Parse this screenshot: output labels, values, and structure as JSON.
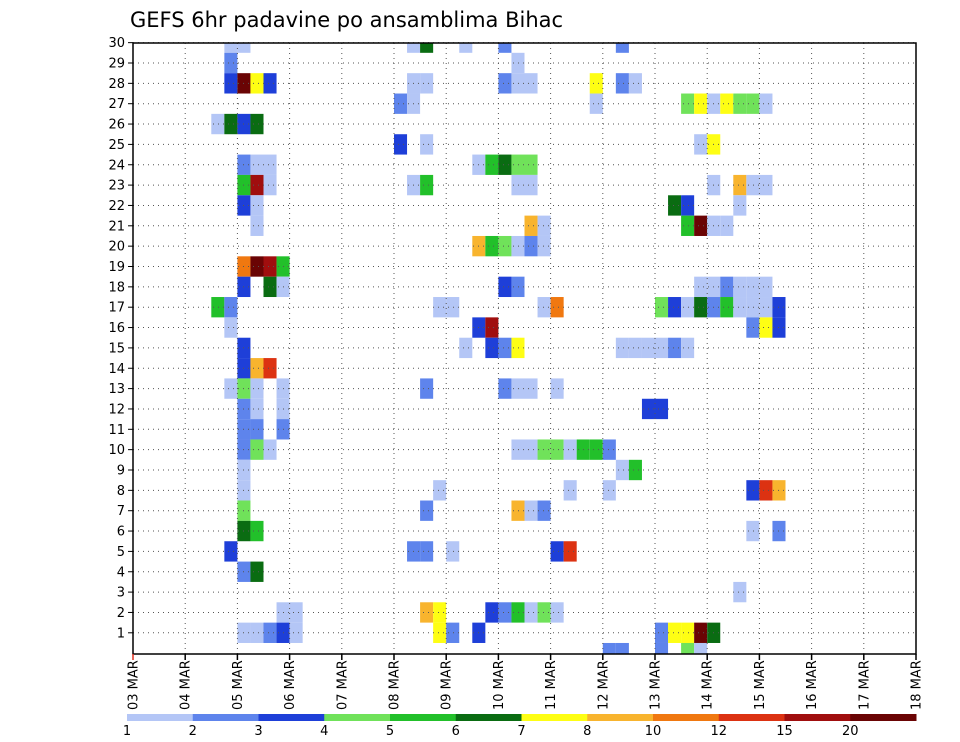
{
  "chart_data": {
    "type": "heatmap",
    "title": "GEFS 6hr padavine po ansamblima Bihac",
    "x_tick_labels": [
      "03 MAR",
      "04 MAR",
      "05 MAR",
      "06 MAR",
      "07 MAR",
      "08 MAR",
      "09 MAR",
      "10 MAR",
      "11 MAR",
      "12 MAR",
      "13 MAR",
      "14 MAR",
      "15 MAR",
      "16 MAR",
      "17 MAR",
      "18 MAR"
    ],
    "y_tick_labels": [
      "1",
      "2",
      "3",
      "4",
      "5",
      "6",
      "7",
      "8",
      "9",
      "10",
      "11",
      "12",
      "13",
      "14",
      "15",
      "16",
      "17",
      "18",
      "19",
      "20",
      "21",
      "22",
      "23",
      "24",
      "25",
      "26",
      "27",
      "28",
      "29",
      "30"
    ],
    "ylim": [
      0,
      30
    ],
    "x_step": "6hr",
    "grid": "dotted",
    "colorbar": {
      "levels": [
        "1",
        "2",
        "3",
        "4",
        "5",
        "6",
        "7",
        "8",
        "10",
        "12",
        "15",
        "20"
      ],
      "colors": [
        "#b4c6f6",
        "#5e84ec",
        "#1e3fd8",
        "#70e25a",
        "#22c02a",
        "#0a6c12",
        "#fefe14",
        "#f8b42e",
        "#f07810",
        "#dc3212",
        "#a00e0e",
        "#6a0404"
      ]
    },
    "cells": [
      [
        7,
        30,
        1
      ],
      [
        8,
        30,
        1
      ],
      [
        21,
        30,
        1
      ],
      [
        22,
        30,
        6
      ],
      [
        25,
        30,
        1
      ],
      [
        28,
        30,
        2
      ],
      [
        37,
        30,
        2
      ],
      [
        7,
        29,
        2
      ],
      [
        29,
        29,
        1
      ],
      [
        7,
        28,
        3
      ],
      [
        8,
        28,
        12
      ],
      [
        9,
        28,
        7
      ],
      [
        10,
        28,
        3
      ],
      [
        21,
        28,
        1
      ],
      [
        22,
        28,
        1
      ],
      [
        28,
        28,
        2
      ],
      [
        29,
        28,
        1
      ],
      [
        30,
        28,
        1
      ],
      [
        35,
        28,
        7
      ],
      [
        37,
        28,
        2
      ],
      [
        38,
        28,
        1
      ],
      [
        20,
        27,
        2
      ],
      [
        21,
        27,
        1
      ],
      [
        35,
        27,
        1
      ],
      [
        42,
        27,
        4
      ],
      [
        43,
        27,
        7
      ],
      [
        44,
        27,
        1
      ],
      [
        45,
        27,
        7
      ],
      [
        46,
        27,
        4
      ],
      [
        47,
        27,
        4
      ],
      [
        48,
        27,
        1
      ],
      [
        6,
        26,
        1
      ],
      [
        7,
        26,
        6
      ],
      [
        8,
        26,
        3
      ],
      [
        9,
        26,
        6
      ],
      [
        20,
        25,
        3
      ],
      [
        22,
        25,
        1
      ],
      [
        43,
        25,
        1
      ],
      [
        44,
        25,
        7
      ],
      [
        8,
        24,
        2
      ],
      [
        9,
        24,
        1
      ],
      [
        10,
        24,
        1
      ],
      [
        26,
        24,
        1
      ],
      [
        27,
        24,
        5
      ],
      [
        28,
        24,
        6
      ],
      [
        29,
        24,
        4
      ],
      [
        30,
        24,
        4
      ],
      [
        8,
        23,
        5
      ],
      [
        9,
        23,
        11
      ],
      [
        10,
        23,
        1
      ],
      [
        21,
        23,
        1
      ],
      [
        22,
        23,
        5
      ],
      [
        29,
        23,
        1
      ],
      [
        30,
        23,
        1
      ],
      [
        44,
        23,
        1
      ],
      [
        46,
        23,
        8
      ],
      [
        47,
        23,
        1
      ],
      [
        48,
        23,
        1
      ],
      [
        8,
        22,
        3
      ],
      [
        9,
        22,
        1
      ],
      [
        41,
        22,
        6
      ],
      [
        42,
        22,
        3
      ],
      [
        46,
        22,
        1
      ],
      [
        9,
        21,
        1
      ],
      [
        30,
        21,
        8
      ],
      [
        31,
        21,
        1
      ],
      [
        42,
        21,
        5
      ],
      [
        43,
        21,
        12
      ],
      [
        44,
        21,
        1
      ],
      [
        45,
        21,
        1
      ],
      [
        26,
        20,
        8
      ],
      [
        27,
        20,
        5
      ],
      [
        28,
        20,
        4
      ],
      [
        29,
        20,
        1
      ],
      [
        30,
        20,
        2
      ],
      [
        31,
        20,
        1
      ],
      [
        8,
        19,
        9
      ],
      [
        9,
        19,
        12
      ],
      [
        10,
        19,
        11
      ],
      [
        11,
        19,
        5
      ],
      [
        8,
        18,
        3
      ],
      [
        10,
        18,
        6
      ],
      [
        11,
        18,
        1
      ],
      [
        28,
        18,
        3
      ],
      [
        29,
        18,
        2
      ],
      [
        43,
        18,
        1
      ],
      [
        44,
        18,
        1
      ],
      [
        45,
        18,
        2
      ],
      [
        46,
        18,
        1
      ],
      [
        47,
        18,
        1
      ],
      [
        48,
        18,
        1
      ],
      [
        6,
        17,
        5
      ],
      [
        7,
        17,
        2
      ],
      [
        23,
        17,
        1
      ],
      [
        24,
        17,
        1
      ],
      [
        31,
        17,
        1
      ],
      [
        32,
        17,
        9
      ],
      [
        40,
        17,
        4
      ],
      [
        41,
        17,
        3
      ],
      [
        42,
        17,
        1
      ],
      [
        43,
        17,
        6
      ],
      [
        44,
        17,
        2
      ],
      [
        45,
        17,
        5
      ],
      [
        46,
        17,
        1
      ],
      [
        47,
        17,
        1
      ],
      [
        48,
        17,
        1
      ],
      [
        49,
        17,
        3
      ],
      [
        7,
        16,
        1
      ],
      [
        26,
        16,
        3
      ],
      [
        27,
        16,
        11
      ],
      [
        47,
        16,
        2
      ],
      [
        48,
        16,
        7
      ],
      [
        49,
        16,
        3
      ],
      [
        8,
        15,
        3
      ],
      [
        25,
        15,
        1
      ],
      [
        27,
        15,
        3
      ],
      [
        28,
        15,
        2
      ],
      [
        29,
        15,
        7
      ],
      [
        37,
        15,
        1
      ],
      [
        38,
        15,
        1
      ],
      [
        39,
        15,
        1
      ],
      [
        40,
        15,
        1
      ],
      [
        41,
        15,
        2
      ],
      [
        42,
        15,
        1
      ],
      [
        8,
        14,
        3
      ],
      [
        9,
        14,
        8
      ],
      [
        10,
        14,
        10
      ],
      [
        7,
        13,
        1
      ],
      [
        8,
        13,
        4
      ],
      [
        9,
        13,
        1
      ],
      [
        11,
        13,
        1
      ],
      [
        22,
        13,
        2
      ],
      [
        28,
        13,
        2
      ],
      [
        29,
        13,
        1
      ],
      [
        30,
        13,
        1
      ],
      [
        32,
        13,
        1
      ],
      [
        8,
        12,
        2
      ],
      [
        9,
        12,
        1
      ],
      [
        11,
        12,
        1
      ],
      [
        39,
        12,
        3
      ],
      [
        40,
        12,
        3
      ],
      [
        8,
        11,
        2
      ],
      [
        9,
        11,
        2
      ],
      [
        11,
        11,
        2
      ],
      [
        8,
        10,
        2
      ],
      [
        9,
        10,
        4
      ],
      [
        10,
        10,
        1
      ],
      [
        29,
        10,
        1
      ],
      [
        30,
        10,
        1
      ],
      [
        31,
        10,
        4
      ],
      [
        32,
        10,
        4
      ],
      [
        33,
        10,
        1
      ],
      [
        34,
        10,
        5
      ],
      [
        35,
        10,
        5
      ],
      [
        36,
        10,
        2
      ],
      [
        8,
        9,
        1
      ],
      [
        37,
        9,
        1
      ],
      [
        38,
        9,
        5
      ],
      [
        8,
        8,
        1
      ],
      [
        23,
        8,
        1
      ],
      [
        33,
        8,
        1
      ],
      [
        36,
        8,
        1
      ],
      [
        47,
        8,
        3
      ],
      [
        48,
        8,
        10
      ],
      [
        49,
        8,
        8
      ],
      [
        8,
        7,
        4
      ],
      [
        22,
        7,
        2
      ],
      [
        29,
        7,
        8
      ],
      [
        30,
        7,
        1
      ],
      [
        31,
        7,
        2
      ],
      [
        8,
        6,
        6
      ],
      [
        9,
        6,
        5
      ],
      [
        47,
        6,
        1
      ],
      [
        49,
        6,
        2
      ],
      [
        7,
        5,
        3
      ],
      [
        21,
        5,
        2
      ],
      [
        22,
        5,
        2
      ],
      [
        24,
        5,
        1
      ],
      [
        32,
        5,
        3
      ],
      [
        33,
        5,
        10
      ],
      [
        8,
        4,
        2
      ],
      [
        9,
        4,
        6
      ],
      [
        46,
        3,
        1
      ],
      [
        11,
        2,
        1
      ],
      [
        12,
        2,
        1
      ],
      [
        22,
        2,
        8
      ],
      [
        23,
        2,
        7
      ],
      [
        27,
        2,
        3
      ],
      [
        28,
        2,
        2
      ],
      [
        29,
        2,
        5
      ],
      [
        30,
        2,
        1
      ],
      [
        31,
        2,
        4
      ],
      [
        32,
        2,
        1
      ],
      [
        8,
        1,
        1
      ],
      [
        9,
        1,
        1
      ],
      [
        10,
        1,
        2
      ],
      [
        11,
        1,
        3
      ],
      [
        12,
        1,
        1
      ],
      [
        23,
        1,
        7
      ],
      [
        24,
        1,
        2
      ],
      [
        26,
        1,
        3
      ],
      [
        40,
        1,
        2
      ],
      [
        41,
        1,
        7
      ],
      [
        42,
        1,
        7
      ],
      [
        43,
        1,
        12
      ],
      [
        44,
        1,
        6
      ],
      [
        36,
        0,
        2
      ],
      [
        37,
        0,
        2
      ],
      [
        40,
        0,
        2
      ],
      [
        42,
        0,
        4
      ],
      [
        43,
        0,
        1
      ],
      [
        8,
        -1,
        5
      ],
      [
        9,
        -1,
        1
      ],
      [
        29,
        -1,
        1
      ],
      [
        37,
        -1,
        1
      ],
      [
        38,
        -1,
        2
      ],
      [
        39,
        -1,
        1
      ],
      [
        40,
        -1,
        4
      ],
      [
        47,
        -1,
        2
      ],
      [
        48,
        -1,
        3
      ]
    ]
  }
}
